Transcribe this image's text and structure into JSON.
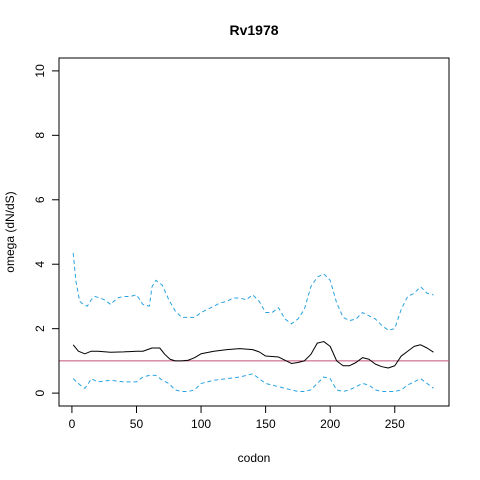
{
  "chart_data": {
    "type": "line",
    "title": "Rv1978",
    "xlabel": "codon",
    "ylabel": "omega (dN/dS)",
    "xlim": [
      -10,
      292
    ],
    "ylim": [
      -0.4,
      10.4
    ],
    "xticks": [
      0,
      50,
      100,
      150,
      200,
      250
    ],
    "yticks": [
      0,
      2,
      4,
      6,
      8,
      10
    ],
    "grid": false,
    "reference_line": {
      "y": 1,
      "color": "#c0507a"
    },
    "series": [
      {
        "style": "solid",
        "color": "#000000",
        "x": [
          1,
          5,
          10,
          15,
          20,
          30,
          40,
          50,
          55,
          62,
          68,
          72,
          76,
          80,
          85,
          90,
          95,
          100,
          110,
          120,
          130,
          140,
          145,
          150,
          160,
          170,
          175,
          180,
          185,
          190,
          195,
          200,
          205,
          210,
          215,
          220,
          225,
          230,
          235,
          240,
          245,
          250,
          255,
          260,
          265,
          270,
          275,
          280
        ],
        "y": [
          1.5,
          1.3,
          1.22,
          1.3,
          1.3,
          1.27,
          1.28,
          1.3,
          1.3,
          1.4,
          1.4,
          1.2,
          1.05,
          1.0,
          1.0,
          1.02,
          1.1,
          1.22,
          1.3,
          1.35,
          1.38,
          1.35,
          1.28,
          1.15,
          1.12,
          0.92,
          0.95,
          1.0,
          1.2,
          1.55,
          1.6,
          1.45,
          1.0,
          0.85,
          0.85,
          0.95,
          1.1,
          1.05,
          0.9,
          0.82,
          0.78,
          0.85,
          1.15,
          1.3,
          1.45,
          1.5,
          1.4,
          1.27
        ]
      },
      {
        "style": "dashed",
        "color": "#29a3e0",
        "x": [
          1,
          3,
          6,
          9,
          12,
          15,
          18,
          25,
          30,
          35,
          40,
          45,
          50,
          55,
          60,
          62,
          65,
          70,
          75,
          80,
          85,
          90,
          95,
          100,
          110,
          115,
          120,
          125,
          130,
          135,
          140,
          145,
          150,
          155,
          160,
          165,
          170,
          175,
          180,
          185,
          190,
          195,
          200,
          205,
          210,
          215,
          220,
          225,
          230,
          235,
          240,
          245,
          250,
          255,
          260,
          265,
          270,
          275,
          280
        ],
        "y": [
          4.35,
          3.5,
          2.85,
          2.75,
          2.7,
          2.9,
          3.0,
          2.9,
          2.75,
          2.95,
          3.0,
          3.0,
          3.05,
          2.75,
          2.7,
          3.3,
          3.5,
          3.35,
          2.9,
          2.55,
          2.35,
          2.35,
          2.35,
          2.5,
          2.7,
          2.8,
          2.85,
          2.95,
          2.95,
          2.9,
          3.05,
          2.85,
          2.5,
          2.5,
          2.65,
          2.3,
          2.15,
          2.3,
          2.6,
          3.3,
          3.6,
          3.7,
          3.5,
          2.8,
          2.35,
          2.25,
          2.3,
          2.5,
          2.4,
          2.3,
          2.1,
          1.95,
          2.0,
          2.6,
          3.0,
          3.1,
          3.3,
          3.1,
          3.05
        ]
      },
      {
        "style": "dashed",
        "color": "#29a3e0",
        "x": [
          1,
          5,
          8,
          10,
          12,
          15,
          20,
          30,
          40,
          50,
          55,
          60,
          65,
          70,
          75,
          80,
          85,
          90,
          95,
          100,
          110,
          120,
          130,
          140,
          145,
          150,
          160,
          170,
          175,
          180,
          185,
          190,
          195,
          200,
          205,
          210,
          215,
          220,
          225,
          230,
          235,
          240,
          245,
          250,
          255,
          260,
          265,
          270,
          275,
          280
        ],
        "y": [
          0.45,
          0.3,
          0.2,
          0.15,
          0.25,
          0.45,
          0.35,
          0.4,
          0.35,
          0.35,
          0.5,
          0.55,
          0.55,
          0.4,
          0.3,
          0.1,
          0.05,
          0.05,
          0.1,
          0.3,
          0.4,
          0.45,
          0.5,
          0.6,
          0.45,
          0.3,
          0.2,
          0.1,
          0.05,
          0.05,
          0.1,
          0.3,
          0.5,
          0.45,
          0.1,
          0.05,
          0.1,
          0.2,
          0.3,
          0.25,
          0.1,
          0.05,
          0.05,
          0.05,
          0.1,
          0.25,
          0.35,
          0.45,
          0.3,
          0.15
        ]
      }
    ]
  }
}
